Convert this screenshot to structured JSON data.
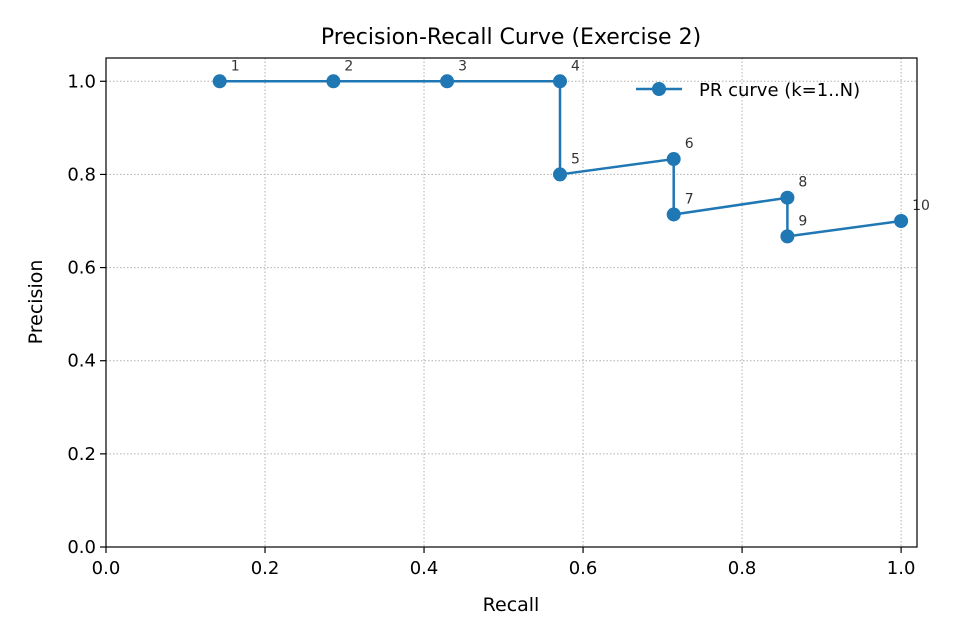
{
  "chart_data": {
    "type": "line",
    "title": "Precision-Recall Curve (Exercise 2)",
    "xlabel": "Recall",
    "ylabel": "Precision",
    "xlim": [
      0.0,
      1.02
    ],
    "ylim": [
      0.0,
      1.05
    ],
    "xticks": [
      0.0,
      0.2,
      0.4,
      0.6,
      0.8,
      1.0
    ],
    "xtick_labels": [
      "0.0",
      "0.2",
      "0.4",
      "0.6",
      "0.8",
      "1.0"
    ],
    "yticks": [
      0.0,
      0.2,
      0.4,
      0.6,
      0.8,
      1.0
    ],
    "ytick_labels": [
      "0.0",
      "0.2",
      "0.4",
      "0.6",
      "0.8",
      "1.0"
    ],
    "grid": true,
    "legend_position": "top-right",
    "series": [
      {
        "name": "PR curve (k=1..N)",
        "color": "#1f77b4",
        "marker": "circle",
        "x": [
          0.143,
          0.286,
          0.429,
          0.571,
          0.571,
          0.714,
          0.714,
          0.857,
          0.857,
          1.0
        ],
        "y": [
          1.0,
          1.0,
          1.0,
          1.0,
          0.8,
          0.833,
          0.714,
          0.75,
          0.667,
          0.7
        ],
        "point_labels": [
          "1",
          "2",
          "3",
          "4",
          "5",
          "6",
          "7",
          "8",
          "9",
          "10"
        ]
      }
    ]
  }
}
